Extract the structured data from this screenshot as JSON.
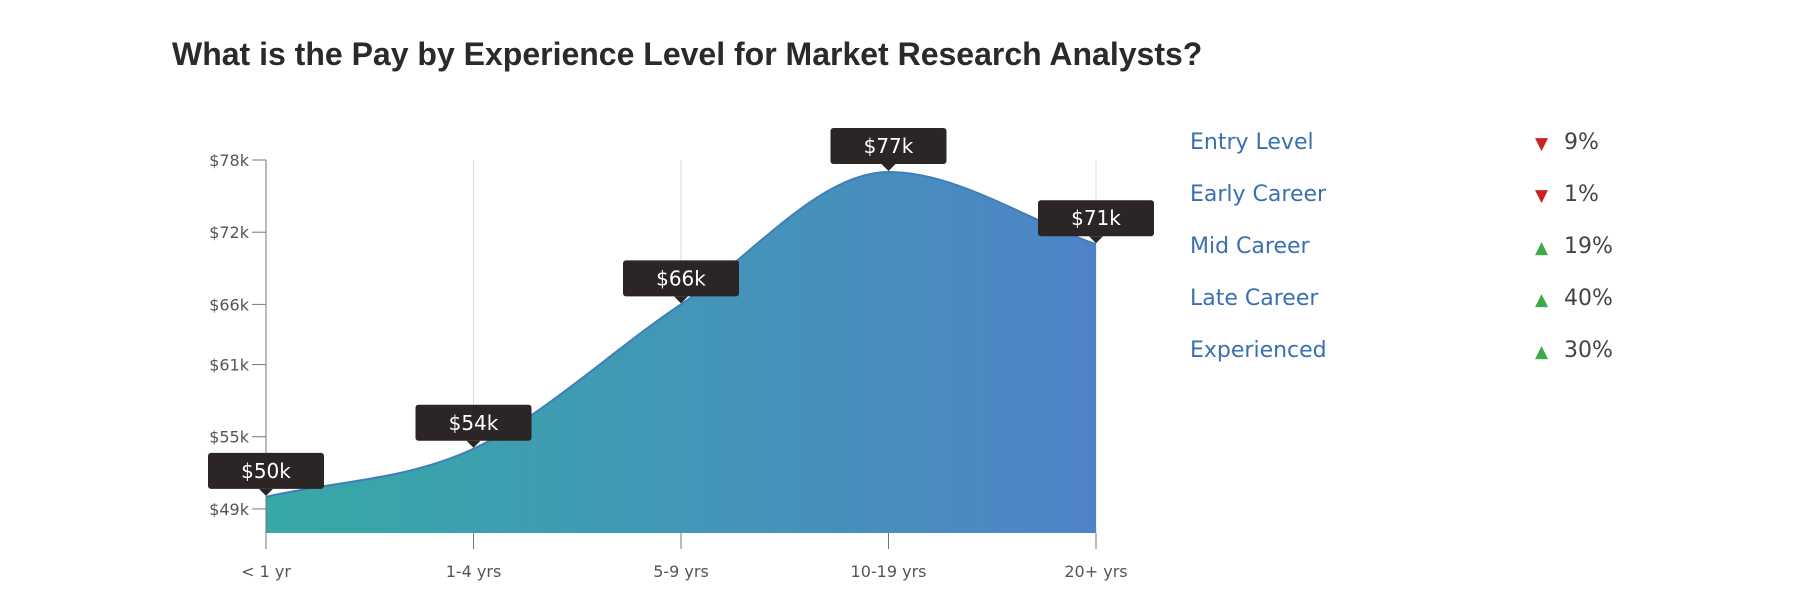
{
  "title": "What is the Pay by Experience Level for Market Research Analysts?",
  "chart_data": {
    "type": "area",
    "categories": [
      "< 1 yr",
      "1-4 yrs",
      "5-9 yrs",
      "10-19 yrs",
      "20+ yrs"
    ],
    "values": [
      50,
      54,
      66,
      77,
      71
    ],
    "value_labels": [
      "$50k",
      "$54k",
      "$66k",
      "$77k",
      "$71k"
    ],
    "yticks": [
      {
        "value": 49,
        "label": "$49k"
      },
      {
        "value": 55,
        "label": "$55k"
      },
      {
        "value": 61,
        "label": "$61k"
      },
      {
        "value": 66,
        "label": "$66k"
      },
      {
        "value": 72,
        "label": "$72k"
      },
      {
        "value": 78,
        "label": "$78k"
      }
    ],
    "ylim": [
      47,
      78
    ],
    "grid": "vertical",
    "gradient": [
      "#36a9a6",
      "#4e84c7"
    ]
  },
  "legend": {
    "items": [
      {
        "label": "Entry Level",
        "direction": "down",
        "arrow": "▼",
        "percent": "9%"
      },
      {
        "label": "Early Career",
        "direction": "down",
        "arrow": "▼",
        "percent": "1%"
      },
      {
        "label": "Mid Career",
        "direction": "up",
        "arrow": "▲",
        "percent": "19%"
      },
      {
        "label": "Late Career",
        "direction": "up",
        "arrow": "▲",
        "percent": "40%"
      },
      {
        "label": "Experienced",
        "direction": "up",
        "arrow": "▲",
        "percent": "30%"
      }
    ]
  }
}
